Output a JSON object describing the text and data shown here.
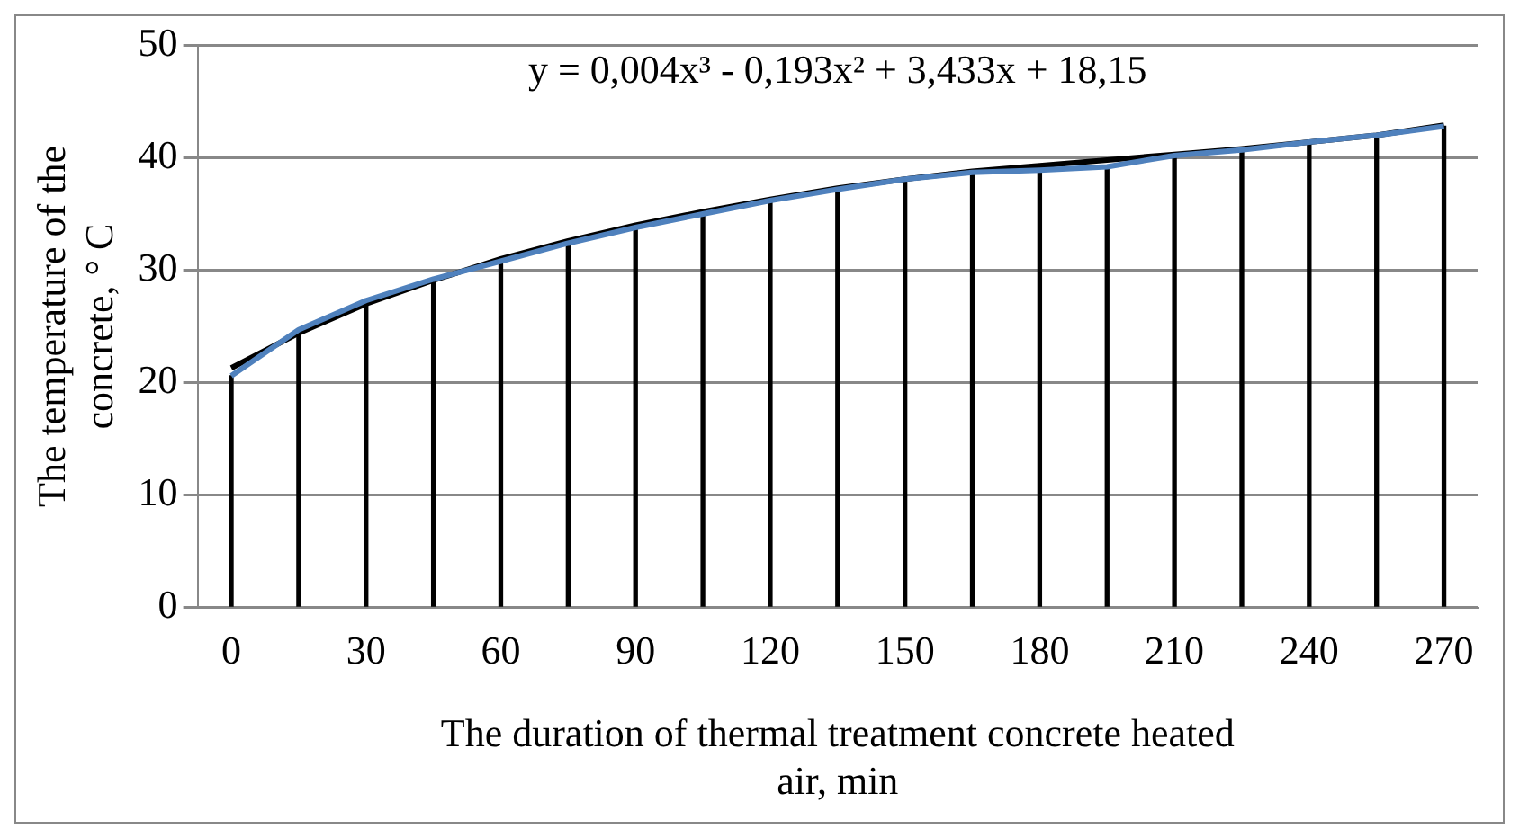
{
  "chart_data": {
    "type": "line",
    "xlabel": "The duration of thermal treatment concrete heated air, min",
    "ylabel": "The temperature of the concrete, ° C",
    "categories": [
      "0",
      null,
      "30",
      null,
      "60",
      null,
      "90",
      null,
      "120",
      null,
      "150",
      null,
      "180",
      null,
      "210",
      null,
      "240",
      null,
      "270"
    ],
    "series": [
      {
        "type": "bar",
        "color": "#000000",
        "values": [
          20.6,
          24.7,
          27.3,
          29.2,
          30.8,
          32.4,
          33.8,
          35.0,
          36.2,
          37.2,
          38.1,
          38.7,
          38.9,
          39.2,
          40.2,
          40.7,
          41.4,
          42.0,
          42.8
        ]
      },
      {
        "color": "#4f81bd",
        "values": [
          20.6,
          24.7,
          27.3,
          29.2,
          30.8,
          32.4,
          33.8,
          35.0,
          36.2,
          37.2,
          38.1,
          38.7,
          38.9,
          39.2,
          40.2,
          40.7,
          41.4,
          42.0,
          42.8
        ]
      },
      {
        "type": "line",
        "color": "#000000",
        "values": [
          21.3,
          24.4,
          27.0,
          29.1,
          31.0,
          32.6,
          34.0,
          35.2,
          36.3,
          37.3,
          38.1,
          38.8,
          39.3,
          39.8,
          40.3,
          40.8,
          41.4,
          42.0,
          42.9
        ]
      }
    ],
    "ylim": [
      0,
      50
    ],
    "yticks": [
      0,
      10,
      20,
      30,
      40,
      50
    ],
    "grid": "y",
    "legend": false,
    "marker": "none",
    "annotations": [
      "y = 0,004x³ - 0,193x² + 3,433x + 18,15"
    ]
  }
}
